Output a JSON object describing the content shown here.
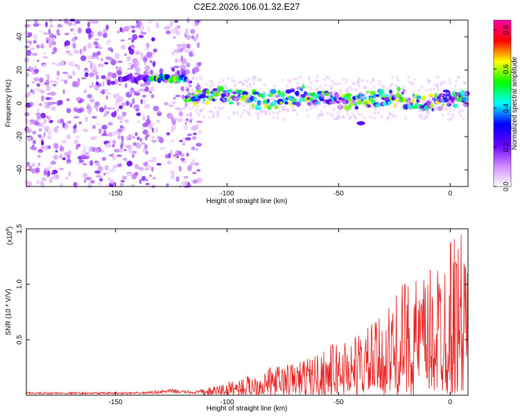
{
  "title": "C2E2.2026.106.01.32.E27",
  "chart_data": [
    {
      "type": "heatmap",
      "xlabel": "Height of straight line (km)",
      "ylabel": "Frequency (Hz)",
      "xlim": [
        -190,
        8
      ],
      "ylim": [
        -50,
        50
      ],
      "xticks": [
        -150,
        -100,
        -50,
        0
      ],
      "yticks": [
        -40,
        -20,
        0,
        20,
        40
      ],
      "colorbar": {
        "label": "Normalized spectral amplitude",
        "range": [
          0,
          0.85
        ],
        "ticks": [
          0.0,
          0.2,
          0.4,
          0.6,
          0.8
        ],
        "colormap": [
          "#ffffff",
          "#cc88ff",
          "#6600ff",
          "#0000ff",
          "#00ffff",
          "#00ff00",
          "#ffff00",
          "#ff0000",
          "#ff00aa"
        ]
      },
      "description_points": [
        {
          "x_range": [
            -190,
            -112
          ],
          "freq": "broadband noise",
          "amplitude": 0.1
        },
        {
          "x_range": [
            -148,
            -138
          ],
          "freq": 15,
          "amplitude": 0.2
        },
        {
          "x_range": [
            -135,
            -118
          ],
          "freq": 15,
          "amplitude": 0.5
        },
        {
          "x_range": [
            -118,
            8
          ],
          "freq_start": 4,
          "freq_end": 2,
          "amplitude": 0.4
        },
        {
          "x_range": [
            -43,
            -37
          ],
          "freq": -12,
          "amplitude": 0.2
        }
      ],
      "grid": false
    },
    {
      "type": "line",
      "xlabel": "Height of straight line (km)",
      "ylabel": "SNR (10 * V/V)",
      "multiplier_label": "(x10",
      "multiplier_exponent": "4",
      "xlim": [
        -190,
        8
      ],
      "ylim": [
        0,
        1.5
      ],
      "xticks": [
        -150,
        -100,
        -50,
        0
      ],
      "yticks": [
        0.5,
        1.0,
        1.5
      ],
      "ytick_labels": [
        "0.5",
        "1.0",
        "1.5"
      ],
      "color": "#e82020",
      "envelope": {
        "x": [
          -190,
          -140,
          -130,
          -125,
          -115,
          -110,
          -100,
          -90,
          -80,
          -70,
          -60,
          -50,
          -40,
          -30,
          -20,
          -10,
          0,
          8
        ],
        "y": [
          0.03,
          0.03,
          0.05,
          0.06,
          0.04,
          0.06,
          0.12,
          0.18,
          0.26,
          0.3,
          0.38,
          0.5,
          0.58,
          0.72,
          1.05,
          1.1,
          1.5,
          1.45
        ]
      }
    }
  ]
}
